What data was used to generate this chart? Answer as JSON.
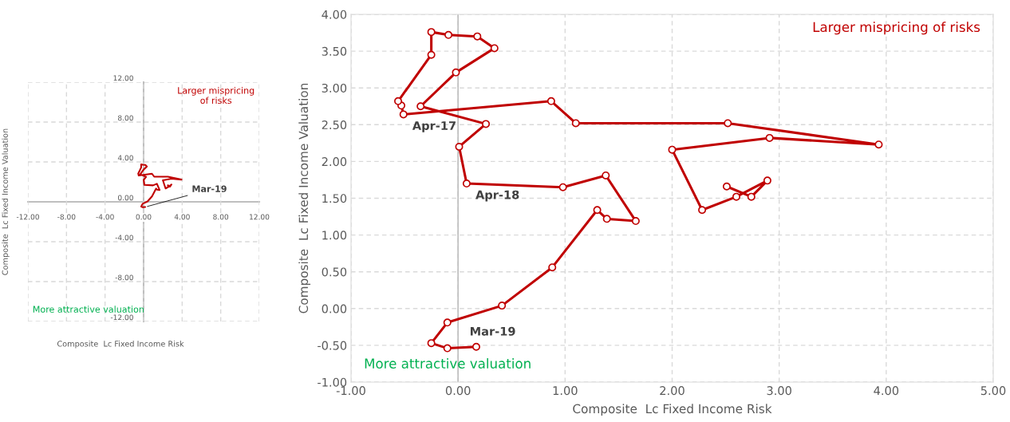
{
  "chart_data": [
    {
      "type": "line",
      "xlabel": "Composite  Lc Fixed Income Risk",
      "ylabel": "Composite  Lc Fixed Income Valuation",
      "series": [
        {
          "color": "#c00000",
          "x": [
            2.51,
            2.74,
            2.89,
            2.6,
            2.28,
            2.0,
            2.91,
            3.93,
            2.52,
            1.1,
            0.87,
            -0.51,
            -0.53,
            -0.56,
            -0.25,
            -0.25,
            -0.09,
            0.18,
            0.34,
            -0.02,
            -0.35,
            0.26,
            0.01,
            0.08,
            0.98,
            1.38,
            1.66,
            1.39,
            1.3,
            0.88,
            0.41,
            -0.1,
            -0.25,
            -0.1,
            0.17
          ],
          "values": [
            1.66,
            1.52,
            1.74,
            1.52,
            1.34,
            2.16,
            2.32,
            2.23,
            2.52,
            2.52,
            2.82,
            2.64,
            2.76,
            2.82,
            3.45,
            3.76,
            3.72,
            3.7,
            3.54,
            3.21,
            2.75,
            2.51,
            2.2,
            1.7,
            1.65,
            1.81,
            1.19,
            1.22,
            1.34,
            0.56,
            0.04,
            -0.19,
            -0.47,
            -0.54,
            -0.52
          ]
        }
      ],
      "xlim": [
        -12,
        12
      ],
      "ylim": [
        -12,
        12
      ],
      "xticks": [
        {
          "value": -12,
          "label": "-12.00"
        },
        {
          "value": -8,
          "label": "-8.00"
        },
        {
          "value": -4,
          "label": "-4.00"
        },
        {
          "value": 0,
          "label": "0.00"
        },
        {
          "value": 4,
          "label": "4.00"
        },
        {
          "value": 8,
          "label": "8.00"
        },
        {
          "value": 12,
          "label": "12.00"
        }
      ],
      "yticks": [
        {
          "value": -12,
          "label": "-12.00"
        },
        {
          "value": -8,
          "label": "-8.00"
        },
        {
          "value": -4,
          "label": "-4.00"
        },
        {
          "value": 0,
          "label": "0.00"
        },
        {
          "value": 4,
          "label": "4.00"
        },
        {
          "value": 8,
          "label": "8.00"
        },
        {
          "value": 12,
          "label": "12.00"
        }
      ],
      "grid": true,
      "marker": "none",
      "line_style": "solid",
      "annotations": [
        "Larger mispricing\nof risks",
        "More attractive valuation",
        {
          "text": "Mar-19",
          "x": 0.17,
          "y": -0.52
        }
      ]
    },
    {
      "type": "line",
      "xlabel": "Composite  Lc Fixed Income Risk",
      "ylabel": "Composite  Lc Fixed Income Valuation",
      "series": [
        {
          "color": "#c00000",
          "x": [
            2.51,
            2.74,
            2.89,
            2.6,
            2.28,
            2.0,
            2.91,
            3.93,
            2.52,
            1.1,
            0.87,
            -0.51,
            -0.53,
            -0.56,
            -0.25,
            -0.25,
            -0.09,
            0.18,
            0.34,
            -0.02,
            -0.35,
            0.26,
            0.01,
            0.08,
            0.98,
            1.38,
            1.66,
            1.39,
            1.3,
            0.88,
            0.41,
            -0.1,
            -0.25,
            -0.1,
            0.17
          ],
          "values": [
            1.66,
            1.52,
            1.74,
            1.52,
            1.34,
            2.16,
            2.32,
            2.23,
            2.52,
            2.52,
            2.82,
            2.64,
            2.76,
            2.82,
            3.45,
            3.76,
            3.72,
            3.7,
            3.54,
            3.21,
            2.75,
            2.51,
            2.2,
            1.7,
            1.65,
            1.81,
            1.19,
            1.22,
            1.34,
            0.56,
            0.04,
            -0.19,
            -0.47,
            -0.54,
            -0.52
          ]
        }
      ],
      "xlim": [
        -1,
        5
      ],
      "ylim": [
        -1,
        4
      ],
      "xticks": [
        {
          "value": -1,
          "label": "-1.00"
        },
        {
          "value": 0,
          "label": "0.00"
        },
        {
          "value": 1,
          "label": "1.00"
        },
        {
          "value": 2,
          "label": "2.00"
        },
        {
          "value": 3,
          "label": "3.00"
        },
        {
          "value": 4,
          "label": "4.00"
        },
        {
          "value": 5,
          "label": "5.00"
        }
      ],
      "yticks": [
        {
          "value": -1,
          "label": "-1.00"
        },
        {
          "value": -0.5,
          "label": "-0.50"
        },
        {
          "value": 0,
          "label": "0.00"
        },
        {
          "value": 0.5,
          "label": "0.50"
        },
        {
          "value": 1,
          "label": "1.00"
        },
        {
          "value": 1.5,
          "label": "1.50"
        },
        {
          "value": 2,
          "label": "2.00"
        },
        {
          "value": 2.5,
          "label": "2.50"
        },
        {
          "value": 3,
          "label": "3.00"
        },
        {
          "value": 3.5,
          "label": "3.50"
        },
        {
          "value": 4,
          "label": "4.00"
        }
      ],
      "grid": true,
      "marker": "circle",
      "line_style": "solid",
      "ref_lines": [
        {
          "axis": "x",
          "value": 0,
          "color": "#bfbfbf"
        }
      ],
      "annotations": [
        "Larger mispricing of risks",
        "More attractive valuation",
        {
          "text": "Apr-17",
          "x": -0.51,
          "y": 2.64
        },
        {
          "text": "Apr-18",
          "x": 0.08,
          "y": 1.7
        },
        {
          "text": "Mar-19",
          "x": 0.17,
          "y": -0.52
        }
      ]
    }
  ]
}
